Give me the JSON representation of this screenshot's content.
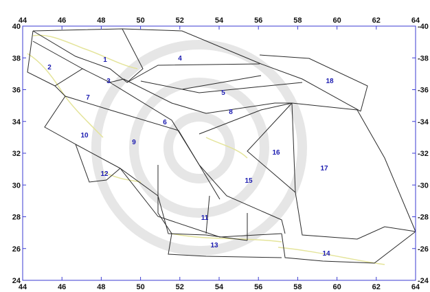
{
  "map": {
    "axes": {
      "x_ticks": [
        "44",
        "46",
        "48",
        "50",
        "52",
        "54",
        "56",
        "58",
        "60",
        "62",
        "64"
      ],
      "y_ticks": [
        "40",
        "38",
        "36",
        "34",
        "32",
        "30",
        "28",
        "26",
        "24"
      ],
      "x_range": [
        44,
        64
      ],
      "y_range": [
        24,
        40
      ]
    },
    "zones": [
      {
        "id": "1",
        "label": "1"
      },
      {
        "id": "2",
        "label": "2"
      },
      {
        "id": "3",
        "label": "3"
      },
      {
        "id": "4",
        "label": "4"
      },
      {
        "id": "5",
        "label": "5"
      },
      {
        "id": "6",
        "label": "6"
      },
      {
        "id": "7",
        "label": "7"
      },
      {
        "id": "8",
        "label": "8"
      },
      {
        "id": "9",
        "label": "9"
      },
      {
        "id": "10",
        "label": "10"
      },
      {
        "id": "11",
        "label": "11"
      },
      {
        "id": "12",
        "label": "12"
      },
      {
        "id": "13",
        "label": "13"
      },
      {
        "id": "14",
        "label": "14"
      },
      {
        "id": "15",
        "label": "15"
      },
      {
        "id": "16",
        "label": "16"
      },
      {
        "id": "17",
        "label": "17"
      },
      {
        "id": "18",
        "label": "18"
      }
    ],
    "colors": {
      "frame": "#3a3ad0",
      "zone_line": "#2a2a2a",
      "coastline": "#e4e49a",
      "watermark": "#c8c8c8",
      "label": "#1a1ab0"
    }
  }
}
